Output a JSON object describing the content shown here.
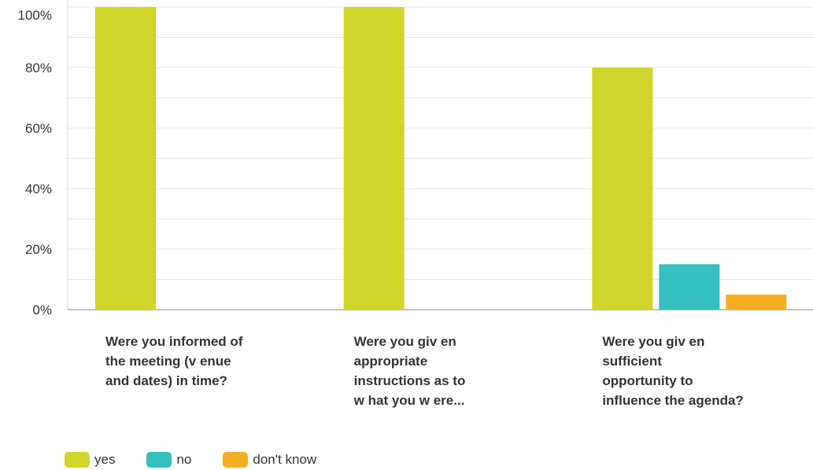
{
  "chart_data": {
    "type": "bar",
    "categories": [
      [
        "Were you informed of",
        "the meeting (v enue",
        "and dates) in time?"
      ],
      [
        "Were you giv en",
        "appropriate",
        "instructions as to",
        "w hat you w ere..."
      ],
      [
        "Were you giv en",
        "sufficient",
        "opportunity to",
        "influence the agenda?"
      ]
    ],
    "series": [
      {
        "name": "yes",
        "color": "#cfd52a",
        "values": [
          100,
          100,
          80
        ]
      },
      {
        "name": "no",
        "color": "#35bfbf",
        "values": [
          0,
          0,
          15
        ]
      },
      {
        "name": "don't know",
        "color": "#f5ae22",
        "values": [
          0,
          0,
          5
        ]
      }
    ],
    "y_ticks": [
      "0%",
      "20%",
      "40%",
      "60%",
      "80%",
      "100%"
    ],
    "ylim": [
      0,
      100
    ],
    "grid": true,
    "legend_position": "bottom-left"
  }
}
